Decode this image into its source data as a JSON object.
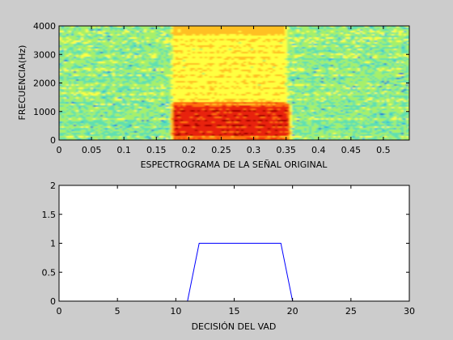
{
  "chart_data": [
    {
      "type": "heatmap",
      "xlabel": "ESPECTROGRAMA DE LA SEÑAL ORIGINAL",
      "ylabel": "FRECUENCIA(Hz)",
      "xlim": [
        0,
        0.54
      ],
      "ylim": [
        0,
        4000
      ],
      "xticks": [
        "0",
        "0.05",
        "0.1",
        "0.15",
        "0.2",
        "0.25",
        "0.3",
        "0.35",
        "0.4",
        "0.45",
        "0.5"
      ],
      "xtick_values": [
        0,
        0.05,
        0.1,
        0.15,
        0.2,
        0.25,
        0.3,
        0.35,
        0.4,
        0.45,
        0.5
      ],
      "yticks": [
        "0",
        "1000",
        "2000",
        "3000",
        "4000"
      ],
      "ytick_values": [
        0,
        1000,
        2000,
        3000,
        4000
      ],
      "grid": false,
      "colormap": [
        "#0a6fd6",
        "#22b8e0",
        "#5ee0b0",
        "#a6f06a",
        "#ffff40",
        "#ffc020",
        "#ff7010",
        "#e82010",
        "#a00000"
      ],
      "speech_region": {
        "start": 0.17,
        "end": 0.36
      }
    },
    {
      "type": "line",
      "xlabel": "DECISIÓN DEL VAD",
      "ylabel": "",
      "xlim": [
        0,
        30
      ],
      "ylim": [
        0,
        2
      ],
      "xticks": [
        "0",
        "5",
        "10",
        "15",
        "20",
        "25",
        "30"
      ],
      "xtick_values": [
        0,
        5,
        10,
        15,
        20,
        25,
        30
      ],
      "yticks": [
        "0",
        "0.5",
        "1",
        "1.5",
        "2"
      ],
      "ytick_values": [
        0,
        0.5,
        1,
        1.5,
        2
      ],
      "grid": false,
      "line_color": "#0000ff",
      "series": [
        {
          "x": [
            0,
            11,
            12,
            19,
            20,
            30
          ],
          "values": [
            0,
            0,
            1,
            1,
            0,
            0
          ]
        }
      ]
    }
  ]
}
